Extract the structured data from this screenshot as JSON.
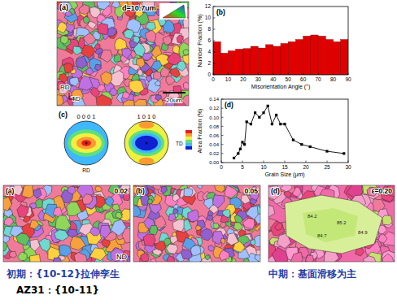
{
  "chart_data": [
    {
      "type": "histogram",
      "title": "(b)",
      "x_label": "Misorientation Angle (°)",
      "y_label": "Number Fraction (%)",
      "bins": [
        0,
        5,
        10,
        15,
        20,
        25,
        30,
        35,
        40,
        45,
        50,
        55,
        60,
        65,
        70,
        75,
        80,
        85,
        90
      ],
      "values": [
        5.8,
        3.8,
        4.2,
        4.5,
        4.6,
        5.0,
        4.7,
        5.3,
        5.0,
        5.5,
        5.8,
        6.2,
        6.8,
        7.0,
        6.8,
        6.2,
        5.8,
        6.2
      ],
      "color": "#e00000",
      "xlim": [
        0,
        90
      ],
      "ylim": [
        0,
        12
      ],
      "xticks": [
        0,
        10,
        20,
        30,
        40,
        50,
        60,
        70,
        80,
        90
      ],
      "yticks": [
        0,
        2,
        4,
        6,
        8,
        10,
        12
      ]
    },
    {
      "type": "line",
      "title": "(d)",
      "x_label": "Grain Size (μm)",
      "y_label": "Area Fraction (%)",
      "x": [
        3,
        4,
        4.5,
        5,
        5.5,
        6,
        7,
        8,
        9,
        10,
        11,
        12,
        13,
        14,
        15,
        17,
        19,
        21,
        25,
        29
      ],
      "values": [
        0.01,
        0.02,
        0.03,
        0.045,
        0.04,
        0.09,
        0.085,
        0.11,
        0.1,
        0.11,
        0.125,
        0.085,
        0.105,
        0.085,
        0.085,
        0.05,
        0.04,
        0.035,
        0.025,
        0.02
      ],
      "color": "#000000",
      "marker": "square",
      "xlim": [
        0,
        30
      ],
      "ylim": [
        0,
        0.14
      ],
      "xticks": [
        0,
        5,
        10,
        15,
        20,
        25,
        30
      ],
      "yticks": [
        {
          "value": 0,
          "label": "0.00"
        },
        0.02,
        0.04,
        0.06,
        0.08,
        {
          "value": 0.1,
          "label": "0.10"
        },
        0.12,
        0.14
      ]
    }
  ],
  "figure": {
    "ebsd_main": {
      "label": "(a)",
      "grain_size": "d=10.7um",
      "rd": "RD",
      "td": "TD",
      "scale": "20um"
    },
    "pole_figures": {
      "label": "(c)",
      "titles": [
        "0 0 0 1",
        "1 0 1 0"
      ],
      "rd": "RD",
      "td": "TD"
    },
    "strain_maps": [
      {
        "label": "(a)",
        "strain": "0.02",
        "nd": "ND"
      },
      {
        "label": "(b)",
        "strain": "0.05"
      },
      {
        "label": "(d)",
        "strain": "ε=0.20",
        "annotations": [
          "84.2",
          "85.2",
          "84.7",
          "84.9"
        ]
      }
    ],
    "captions": [
      "初期：{10-12}拉伸孪生",
      "AZ31：{10-11}",
      "中期：基面滑移为主"
    ]
  }
}
